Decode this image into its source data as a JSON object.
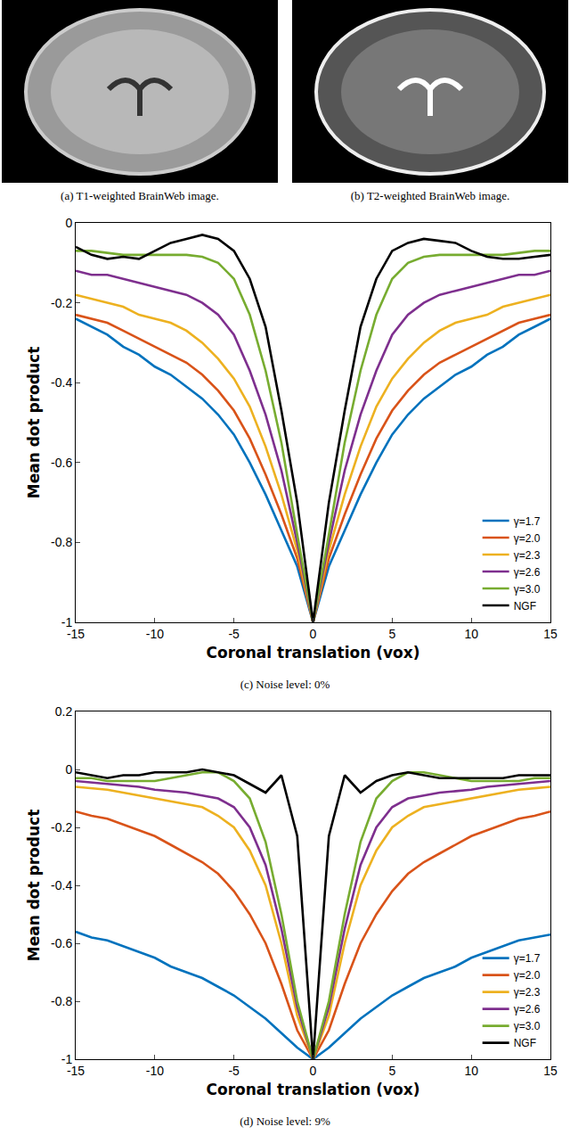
{
  "images": [
    {
      "caption": "(a) T1-weighted BrainWeb image."
    },
    {
      "caption": "(b) T2-weighted BrainWeb image."
    }
  ],
  "chart_data": [
    {
      "type": "line",
      "caption": "(c) Noise level: 0%",
      "x_label": "Coronal translation (vox)",
      "y_label": "Mean dot product",
      "x": [
        -15,
        -14,
        -13,
        -12,
        -11,
        -10,
        -9,
        -8,
        -7,
        -6,
        -5,
        -4,
        -3,
        -2,
        -1,
        0,
        1,
        2,
        3,
        4,
        5,
        6,
        7,
        8,
        9,
        10,
        11,
        12,
        13,
        14,
        15
      ],
      "xlim": [
        -15,
        15
      ],
      "xticks": [
        -15,
        -10,
        -5,
        0,
        5,
        10,
        15
      ],
      "ylim": [
        -1,
        0
      ],
      "yticks": [
        -1,
        -0.8,
        -0.6,
        -0.4,
        -0.2,
        0
      ],
      "grid": false,
      "legend": "lower right",
      "series": [
        {
          "name": "γ=1.7",
          "color": "#0072BD",
          "values": [
            -0.24,
            -0.26,
            -0.28,
            -0.31,
            -0.33,
            -0.36,
            -0.38,
            -0.41,
            -0.44,
            -0.48,
            -0.53,
            -0.6,
            -0.68,
            -0.77,
            -0.86,
            -1,
            -0.86,
            -0.77,
            -0.68,
            -0.6,
            -0.53,
            -0.48,
            -0.44,
            -0.41,
            -0.38,
            -0.36,
            -0.33,
            -0.31,
            -0.28,
            -0.26,
            -0.24
          ]
        },
        {
          "name": "γ=2.0",
          "color": "#D95319",
          "values": [
            -0.23,
            -0.24,
            -0.25,
            -0.27,
            -0.29,
            -0.31,
            -0.33,
            -0.35,
            -0.38,
            -0.42,
            -0.47,
            -0.54,
            -0.63,
            -0.73,
            -0.84,
            -1,
            -0.84,
            -0.73,
            -0.63,
            -0.54,
            -0.47,
            -0.42,
            -0.38,
            -0.35,
            -0.33,
            -0.31,
            -0.29,
            -0.27,
            -0.25,
            -0.24,
            -0.23
          ]
        },
        {
          "name": "γ=2.3",
          "color": "#EDB120",
          "values": [
            -0.18,
            -0.19,
            -0.2,
            -0.21,
            -0.23,
            -0.24,
            -0.25,
            -0.27,
            -0.3,
            -0.34,
            -0.39,
            -0.46,
            -0.56,
            -0.68,
            -0.82,
            -1,
            -0.82,
            -0.68,
            -0.56,
            -0.46,
            -0.39,
            -0.34,
            -0.3,
            -0.27,
            -0.25,
            -0.24,
            -0.23,
            -0.21,
            -0.2,
            -0.19,
            -0.18
          ]
        },
        {
          "name": "γ=2.6",
          "color": "#7E2F8E",
          "values": [
            -0.12,
            -0.13,
            -0.13,
            -0.14,
            -0.15,
            -0.16,
            -0.17,
            -0.18,
            -0.2,
            -0.23,
            -0.28,
            -0.37,
            -0.48,
            -0.62,
            -0.8,
            -1,
            -0.8,
            -0.62,
            -0.48,
            -0.37,
            -0.28,
            -0.23,
            -0.2,
            -0.18,
            -0.17,
            -0.16,
            -0.15,
            -0.14,
            -0.13,
            -0.13,
            -0.12
          ]
        },
        {
          "name": "γ=3.0",
          "color": "#77AC30",
          "values": [
            -0.07,
            -0.07,
            -0.075,
            -0.08,
            -0.08,
            -0.08,
            -0.08,
            -0.08,
            -0.085,
            -0.1,
            -0.14,
            -0.23,
            -0.37,
            -0.55,
            -0.78,
            -1,
            -0.78,
            -0.55,
            -0.37,
            -0.23,
            -0.14,
            -0.1,
            -0.085,
            -0.08,
            -0.08,
            -0.08,
            -0.08,
            -0.08,
            -0.075,
            -0.07,
            -0.07
          ]
        },
        {
          "name": "NGF",
          "color": "#000000",
          "values": [
            -0.06,
            -0.08,
            -0.09,
            -0.085,
            -0.09,
            -0.07,
            -0.05,
            -0.04,
            -0.03,
            -0.04,
            -0.07,
            -0.14,
            -0.26,
            -0.47,
            -0.7,
            -1,
            -0.7,
            -0.47,
            -0.26,
            -0.14,
            -0.07,
            -0.05,
            -0.04,
            -0.045,
            -0.05,
            -0.07,
            -0.085,
            -0.09,
            -0.09,
            -0.085,
            -0.08
          ]
        }
      ]
    },
    {
      "type": "line",
      "caption": "(d) Noise level: 9%",
      "x_label": "Coronal translation (vox)",
      "y_label": "Mean dot product",
      "x": [
        -15,
        -14,
        -13,
        -12,
        -11,
        -10,
        -9,
        -8,
        -7,
        -6,
        -5,
        -4,
        -3,
        -2,
        -1,
        0,
        1,
        2,
        3,
        4,
        5,
        6,
        7,
        8,
        9,
        10,
        11,
        12,
        13,
        14,
        15
      ],
      "xlim": [
        -15,
        15
      ],
      "xticks": [
        -15,
        -10,
        -5,
        0,
        5,
        10,
        15
      ],
      "ylim": [
        -1,
        0.2
      ],
      "yticks": [
        -1,
        -0.8,
        -0.6,
        -0.4,
        -0.2,
        0,
        0.2
      ],
      "grid": false,
      "legend": "lower right",
      "series": [
        {
          "name": "γ=1.7",
          "color": "#0072BD",
          "values": [
            -0.56,
            -0.58,
            -0.59,
            -0.61,
            -0.63,
            -0.65,
            -0.68,
            -0.7,
            -0.72,
            -0.75,
            -0.78,
            -0.82,
            -0.86,
            -0.91,
            -0.96,
            -1,
            -0.96,
            -0.91,
            -0.86,
            -0.82,
            -0.78,
            -0.75,
            -0.72,
            -0.7,
            -0.68,
            -0.65,
            -0.63,
            -0.61,
            -0.59,
            -0.58,
            -0.57
          ]
        },
        {
          "name": "γ=2.0",
          "color": "#D95319",
          "values": [
            -0.145,
            -0.16,
            -0.17,
            -0.19,
            -0.21,
            -0.23,
            -0.26,
            -0.29,
            -0.32,
            -0.36,
            -0.42,
            -0.5,
            -0.6,
            -0.74,
            -0.9,
            -1,
            -0.9,
            -0.74,
            -0.6,
            -0.5,
            -0.42,
            -0.36,
            -0.32,
            -0.29,
            -0.26,
            -0.23,
            -0.21,
            -0.19,
            -0.17,
            -0.16,
            -0.145
          ]
        },
        {
          "name": "γ=2.3",
          "color": "#EDB120",
          "values": [
            -0.06,
            -0.065,
            -0.07,
            -0.08,
            -0.09,
            -0.1,
            -0.11,
            -0.12,
            -0.13,
            -0.16,
            -0.2,
            -0.28,
            -0.4,
            -0.6,
            -0.85,
            -1,
            -0.85,
            -0.6,
            -0.4,
            -0.28,
            -0.2,
            -0.16,
            -0.13,
            -0.12,
            -0.11,
            -0.1,
            -0.09,
            -0.08,
            -0.07,
            -0.065,
            -0.06
          ]
        },
        {
          "name": "γ=2.6",
          "color": "#7E2F8E",
          "values": [
            -0.04,
            -0.045,
            -0.05,
            -0.055,
            -0.06,
            -0.07,
            -0.075,
            -0.08,
            -0.09,
            -0.1,
            -0.13,
            -0.2,
            -0.33,
            -0.55,
            -0.82,
            -1,
            -0.82,
            -0.55,
            -0.33,
            -0.2,
            -0.13,
            -0.1,
            -0.09,
            -0.08,
            -0.075,
            -0.07,
            -0.06,
            -0.055,
            -0.05,
            -0.045,
            -0.04
          ]
        },
        {
          "name": "γ=3.0",
          "color": "#77AC30",
          "values": [
            -0.03,
            -0.03,
            -0.04,
            -0.04,
            -0.04,
            -0.04,
            -0.03,
            -0.02,
            -0.01,
            -0.01,
            -0.04,
            -0.1,
            -0.25,
            -0.5,
            -0.8,
            -1,
            -0.8,
            -0.5,
            -0.25,
            -0.1,
            -0.04,
            -0.01,
            -0.01,
            -0.02,
            -0.03,
            -0.04,
            -0.04,
            -0.04,
            -0.04,
            -0.03,
            -0.03
          ]
        },
        {
          "name": "NGF",
          "color": "#000000",
          "values": [
            -0.01,
            -0.02,
            -0.03,
            -0.02,
            -0.02,
            -0.01,
            -0.01,
            -0.01,
            0,
            -0.01,
            -0.02,
            -0.05,
            -0.08,
            -0.02,
            -0.23,
            -1,
            -0.23,
            -0.02,
            -0.08,
            -0.04,
            -0.02,
            -0.01,
            -0.02,
            -0.03,
            -0.03,
            -0.03,
            -0.03,
            -0.03,
            -0.02,
            -0.02,
            -0.02
          ]
        }
      ]
    }
  ]
}
